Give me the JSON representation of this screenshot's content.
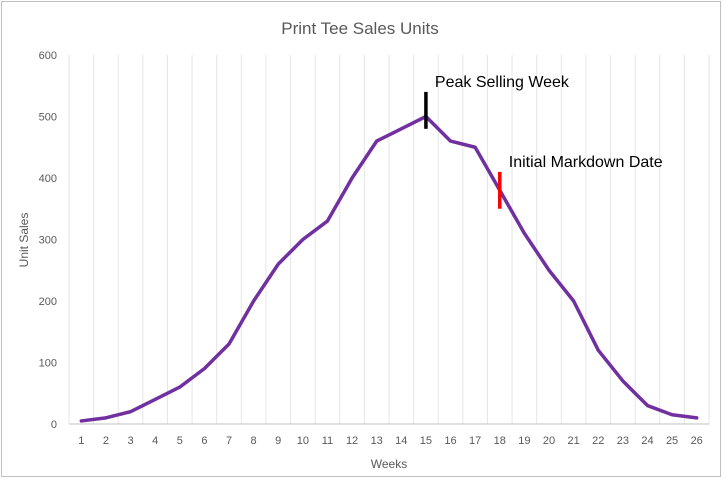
{
  "chart_data": {
    "type": "line",
    "title": "Print Tee Sales Units",
    "xlabel": "Weeks",
    "ylabel": "Unit Sales",
    "ylim": [
      0,
      600
    ],
    "yticks": [
      0,
      100,
      200,
      300,
      400,
      500,
      600
    ],
    "categories": [
      "1",
      "2",
      "3",
      "4",
      "5",
      "6",
      "7",
      "8",
      "9",
      "10",
      "11",
      "12",
      "13",
      "14",
      "15",
      "16",
      "17",
      "18",
      "19",
      "20",
      "21",
      "22",
      "23",
      "24",
      "25",
      "26"
    ],
    "series": [
      {
        "color": "#7030a0",
        "values": [
          5,
          10,
          20,
          40,
          60,
          90,
          130,
          200,
          260,
          300,
          330,
          400,
          460,
          480,
          500,
          460,
          450,
          380,
          310,
          250,
          200,
          120,
          70,
          30,
          15,
          10
        ]
      }
    ],
    "grid": "vertical",
    "annotations": [
      {
        "text": "Peak Selling Week",
        "week": 15,
        "marker_range": [
          480,
          540
        ],
        "color": "#000000"
      },
      {
        "text": "Initial Markdown Date",
        "week": 18,
        "marker_range": [
          350,
          410
        ],
        "color": "#ff0000"
      }
    ]
  }
}
